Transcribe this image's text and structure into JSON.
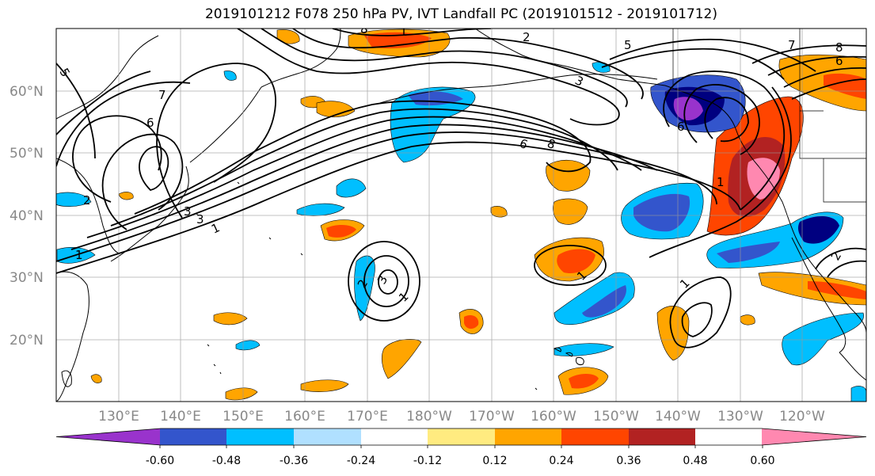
{
  "title": "2019101212 F078 250 hPa PV, IVT Landfall PC (2019101512 - 2019101712)",
  "map": {
    "lon_labels": [
      "130°E",
      "140°E",
      "150°E",
      "160°E",
      "170°E",
      "180°W",
      "170°W",
      "160°W",
      "150°W",
      "140°W",
      "130°W",
      "120°W"
    ],
    "lat_labels": [
      "60°N",
      "50°N",
      "40°N",
      "30°N",
      "20°N"
    ],
    "contour_labels": [
      "1",
      "1",
      "2",
      "3",
      "3",
      "5",
      "6",
      "7",
      "8",
      "6",
      "3",
      "2",
      "1",
      "1",
      "1",
      "5",
      "7",
      "8",
      "6",
      "2",
      "1",
      "2",
      "3",
      "6",
      "8",
      "1"
    ]
  },
  "colorbar": {
    "tick_labels": [
      "-0.60",
      "-0.48",
      "-0.36",
      "-0.24",
      "-0.12",
      "0.12",
      "0.24",
      "0.36",
      "0.48",
      "0.60"
    ],
    "colors": [
      "#9933cc",
      "#000080",
      "#3355cc",
      "#00bfff",
      "#b0e0ff",
      "#ffffff",
      "#ffeb80",
      "#ffa500",
      "#ff4500",
      "#b22222",
      "#ff88b0"
    ]
  }
}
